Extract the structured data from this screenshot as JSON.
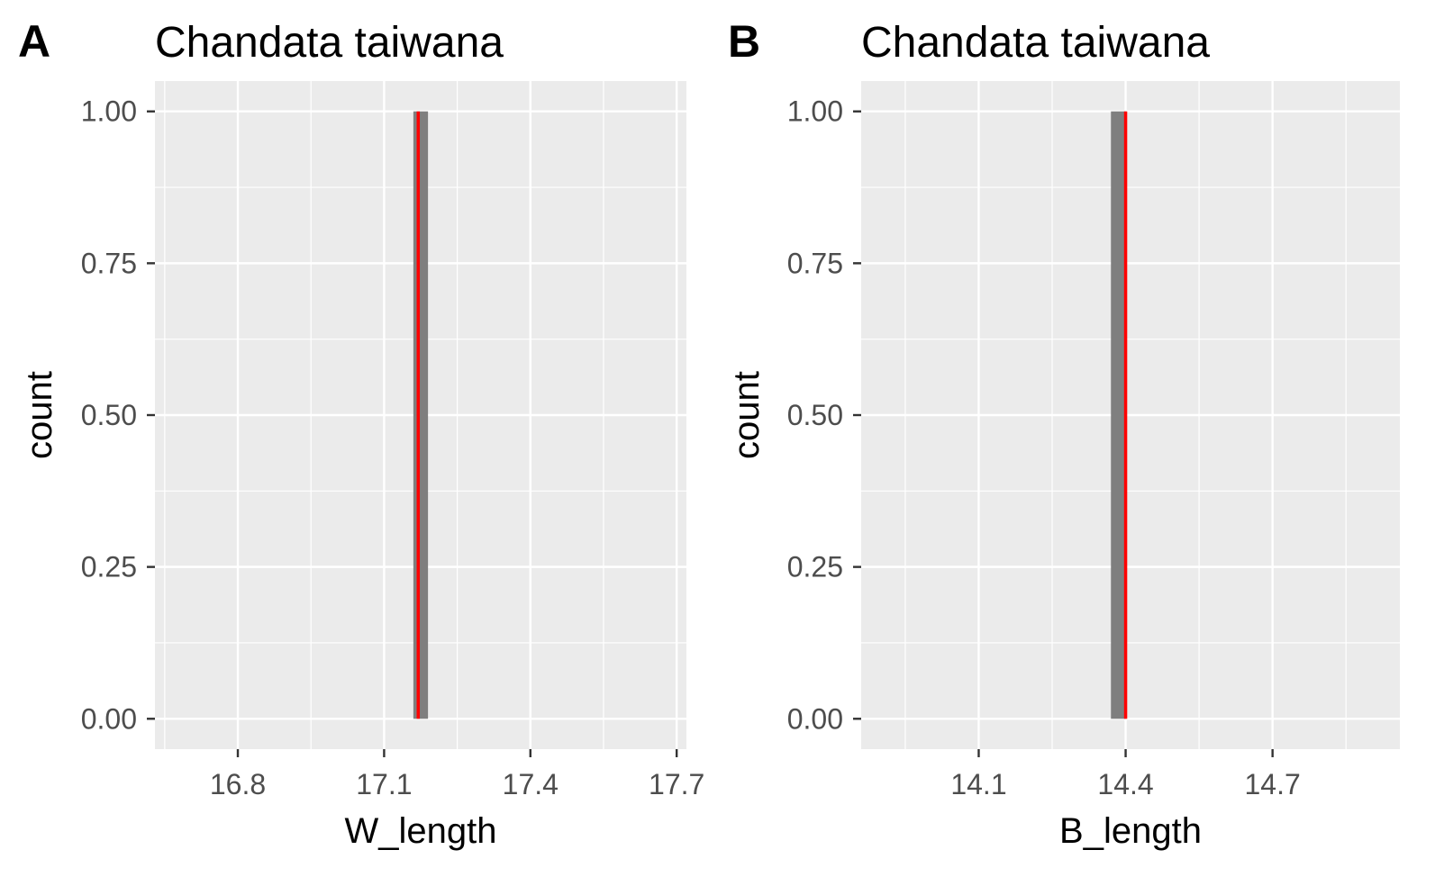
{
  "chart_data": [
    {
      "type": "histogram",
      "panel_tag": "A",
      "title": "Chandata taiwana",
      "xlabel": "W_length",
      "ylabel": "count",
      "xlim": [
        16.63,
        17.72
      ],
      "ylim": [
        -0.05,
        1.05
      ],
      "x_ticks": [
        16.8,
        17.1,
        17.4,
        17.7
      ],
      "x_tick_labels": [
        "16.8",
        "17.1",
        "17.4",
        "17.7"
      ],
      "y_ticks": [
        0,
        0.25,
        0.5,
        0.75,
        1
      ],
      "y_tick_labels": [
        "0.00",
        "0.25",
        "0.50",
        "0.75",
        "1.00"
      ],
      "bars": [
        {
          "xmin": 17.16,
          "xmax": 17.19,
          "count": 1
        }
      ],
      "mean_line": {
        "x": 17.17,
        "color": "#ff0000"
      },
      "grid": true,
      "background": "#ebebeb",
      "bar_color": "#7f7f7f"
    },
    {
      "type": "histogram",
      "panel_tag": "B",
      "title": "Chandata taiwana",
      "xlabel": "B_length",
      "ylabel": "count",
      "xlim": [
        13.86,
        14.96
      ],
      "ylim": [
        -0.05,
        1.05
      ],
      "x_ticks": [
        14.1,
        14.4,
        14.7
      ],
      "x_tick_labels": [
        "14.1",
        "14.4",
        "14.7"
      ],
      "y_ticks": [
        0,
        0.25,
        0.5,
        0.75,
        1
      ],
      "y_tick_labels": [
        "0.00",
        "0.25",
        "0.50",
        "0.75",
        "1.00"
      ],
      "bars": [
        {
          "xmin": 14.37,
          "xmax": 14.4,
          "count": 1
        }
      ],
      "mean_line": {
        "x": 14.4,
        "color": "#ff0000"
      },
      "grid": true,
      "background": "#ebebeb",
      "bar_color": "#7f7f7f"
    }
  ]
}
